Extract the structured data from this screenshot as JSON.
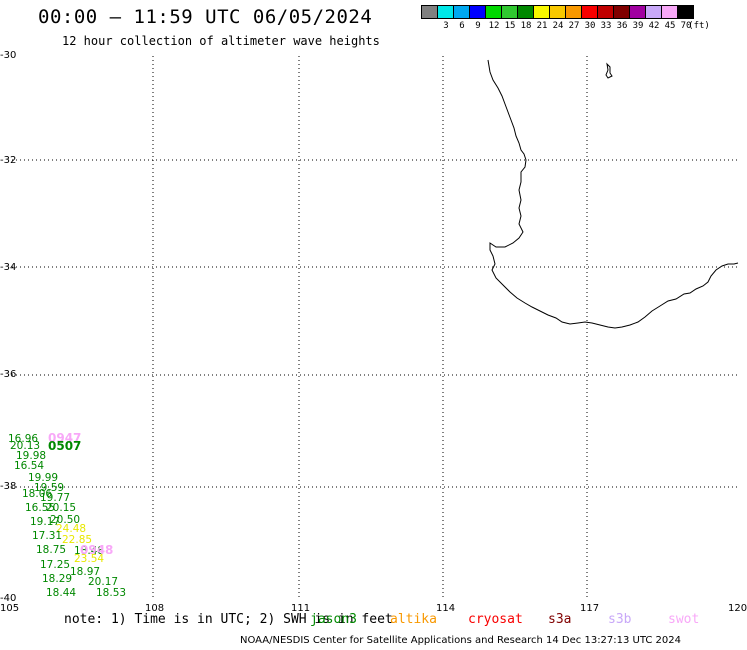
{
  "header": {
    "title": "00:00 — 11:59 UTC 06/05/2024",
    "subtitle": "12 hour collection of altimeter wave heights"
  },
  "legend": {
    "unit": "(ft)",
    "swatches": [
      {
        "color": "#808080",
        "label": ""
      },
      {
        "color": "#00e8e8",
        "label": "3"
      },
      {
        "color": "#00a8f0",
        "label": "6"
      },
      {
        "color": "#0000ff",
        "label": "9"
      },
      {
        "color": "#00d800",
        "label": "12"
      },
      {
        "color": "#30c830",
        "label": "15"
      },
      {
        "color": "#008800",
        "label": "18"
      },
      {
        "color": "#f8f800",
        "label": "21"
      },
      {
        "color": "#f8c800",
        "label": "24"
      },
      {
        "color": "#f89800",
        "label": "27"
      },
      {
        "color": "#f80000",
        "label": "30"
      },
      {
        "color": "#c00000",
        "label": "33"
      },
      {
        "color": "#800000",
        "label": "36"
      },
      {
        "color": "#a000a0",
        "label": "39"
      },
      {
        "color": "#c8a8f8",
        "label": "42"
      },
      {
        "color": "#f8a8f8",
        "label": "45"
      },
      {
        "color": "#000000",
        "label": "70"
      }
    ]
  },
  "map": {
    "lon_ticks": [
      "105",
      "108",
      "111",
      "114",
      "117",
      "120"
    ],
    "lat_ticks": [
      "-30",
      "-32",
      "-34",
      "-36",
      "-38",
      "-40"
    ]
  },
  "observations": [
    {
      "text": "16.96",
      "color": "#008800"
    },
    {
      "text": "20.13",
      "color": "#008800"
    },
    {
      "text": "19.98",
      "color": "#008800"
    },
    {
      "text": "16.54",
      "color": "#008800"
    },
    {
      "text": "19.99",
      "color": "#008800"
    },
    {
      "text": "19.59",
      "color": "#008800"
    },
    {
      "text": "18.06",
      "color": "#008800"
    },
    {
      "text": "19.77",
      "color": "#008800"
    },
    {
      "text": "16.55",
      "color": "#008800"
    },
    {
      "text": "20.15",
      "color": "#008800"
    },
    {
      "text": "20.50",
      "color": "#008800"
    },
    {
      "text": "19.17",
      "color": "#008800"
    },
    {
      "text": "24.48",
      "color": "#e8e800"
    },
    {
      "text": "17.31",
      "color": "#008800"
    },
    {
      "text": "22.85",
      "color": "#e8e800"
    },
    {
      "text": "18.75",
      "color": "#008800"
    },
    {
      "text": "18.48",
      "color": "#008800"
    },
    {
      "text": "23.54",
      "color": "#e8e800"
    },
    {
      "text": "17.25",
      "color": "#008800"
    },
    {
      "text": "18.97",
      "color": "#008800"
    },
    {
      "text": "18.29",
      "color": "#008800"
    },
    {
      "text": "20.17",
      "color": "#008800"
    },
    {
      "text": "18.44",
      "color": "#008800"
    },
    {
      "text": "18.53",
      "color": "#008800"
    }
  ],
  "pass_times": [
    {
      "text": "0947",
      "color": "#f8a8f8"
    },
    {
      "text": "0507",
      "color": "#008800"
    },
    {
      "text": "0948",
      "color": "#f8a8f8"
    }
  ],
  "footer": {
    "note": "note: 1) Time is in UTC; 2) SWH is in feet",
    "satellites": [
      {
        "name": "jason3",
        "color": "#008800"
      },
      {
        "name": "altika",
        "color": "#f89800"
      },
      {
        "name": "cryosat",
        "color": "#f80000"
      },
      {
        "name": "s3a",
        "color": "#800000"
      },
      {
        "name": "s3b",
        "color": "#c8a8f8"
      },
      {
        "name": "swot",
        "color": "#f8a8f8"
      }
    ],
    "credit": "NOAA/NESDIS Center for Satellite Applications and Research    14 Dec 13:27:13 UTC 2024"
  }
}
